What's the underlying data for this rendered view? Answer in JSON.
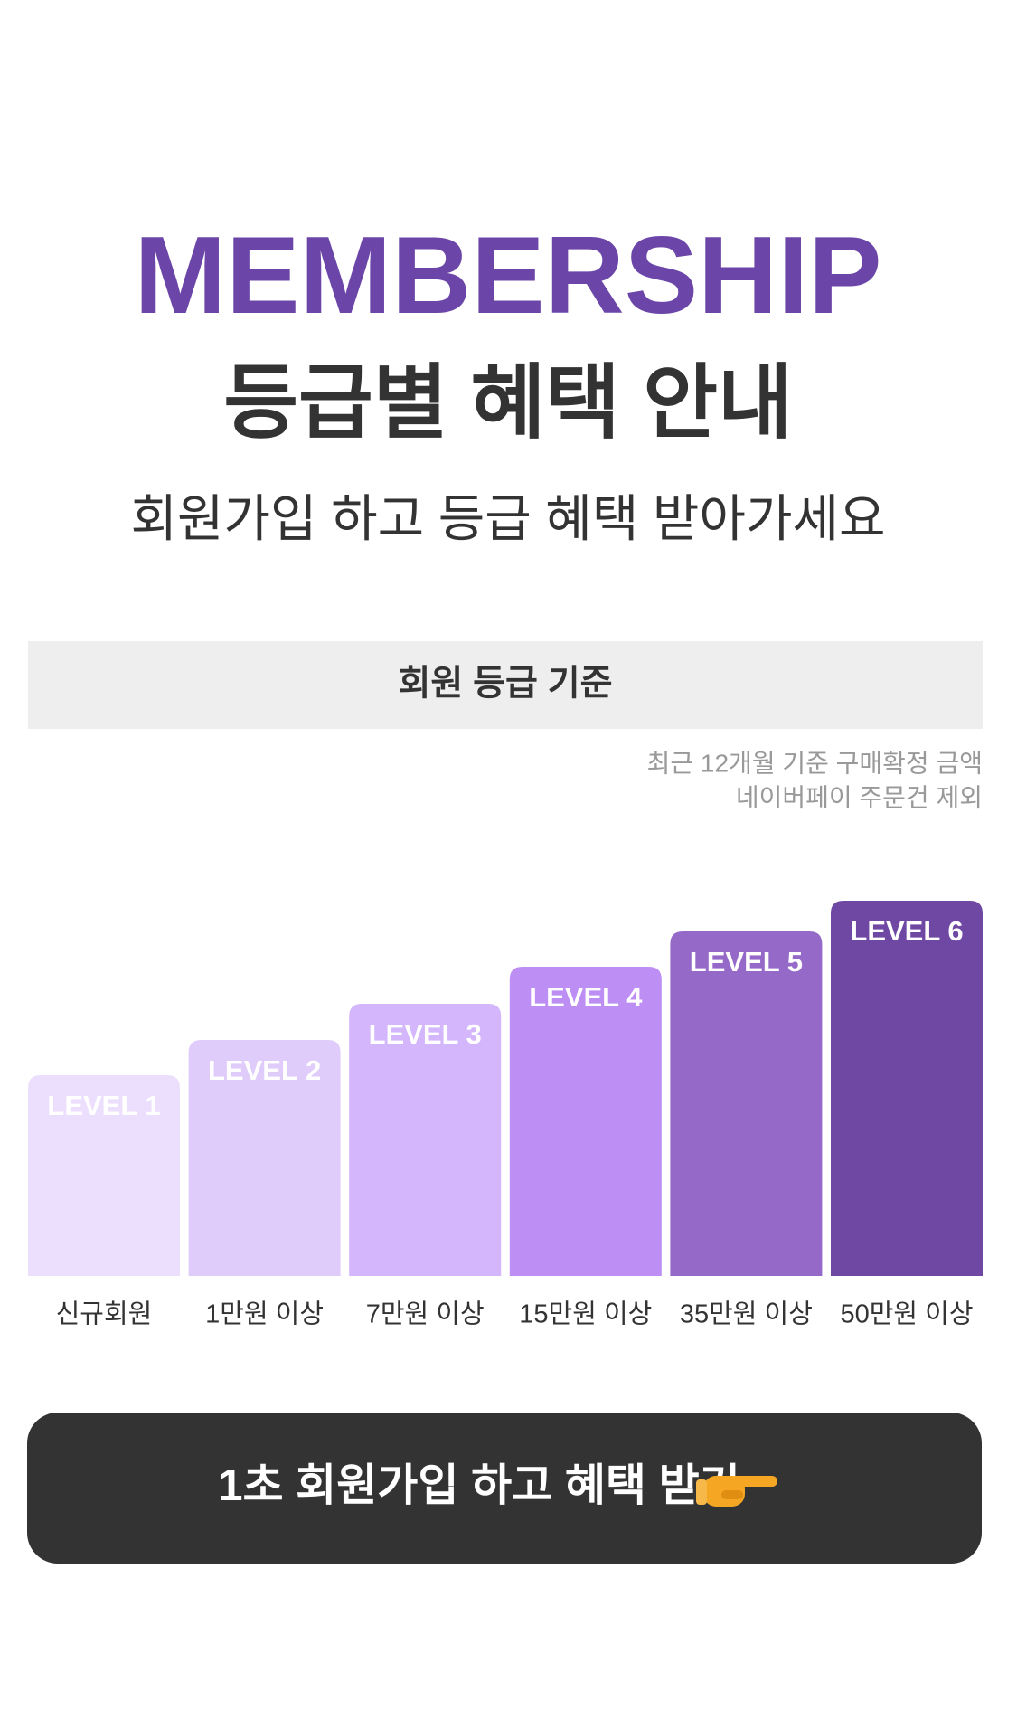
{
  "header": {
    "title": "MEMBERSHIP",
    "subtitle": "등급별 혜택 안내",
    "description": "회원가입 하고 등급 혜택 받아가세요"
  },
  "criteria": {
    "title": "회원 등급 기준",
    "notes": [
      "최근 12개월 기준 구매확정 금액",
      "네이버페이 주문건 제외"
    ]
  },
  "levels": [
    {
      "name": "LEVEL 1",
      "requirement": "신규회원"
    },
    {
      "name": "LEVEL 2",
      "requirement": "1만원 이상"
    },
    {
      "name": "LEVEL 3",
      "requirement": "7만원 이상"
    },
    {
      "name": "LEVEL 4",
      "requirement": "15만원 이상"
    },
    {
      "name": "LEVEL 5",
      "requirement": "35만원 이상"
    },
    {
      "name": "LEVEL 6",
      "requirement": "50만원 이상"
    }
  ],
  "button": {
    "label": "1초 회원가입 하고 혜택 받기"
  }
}
